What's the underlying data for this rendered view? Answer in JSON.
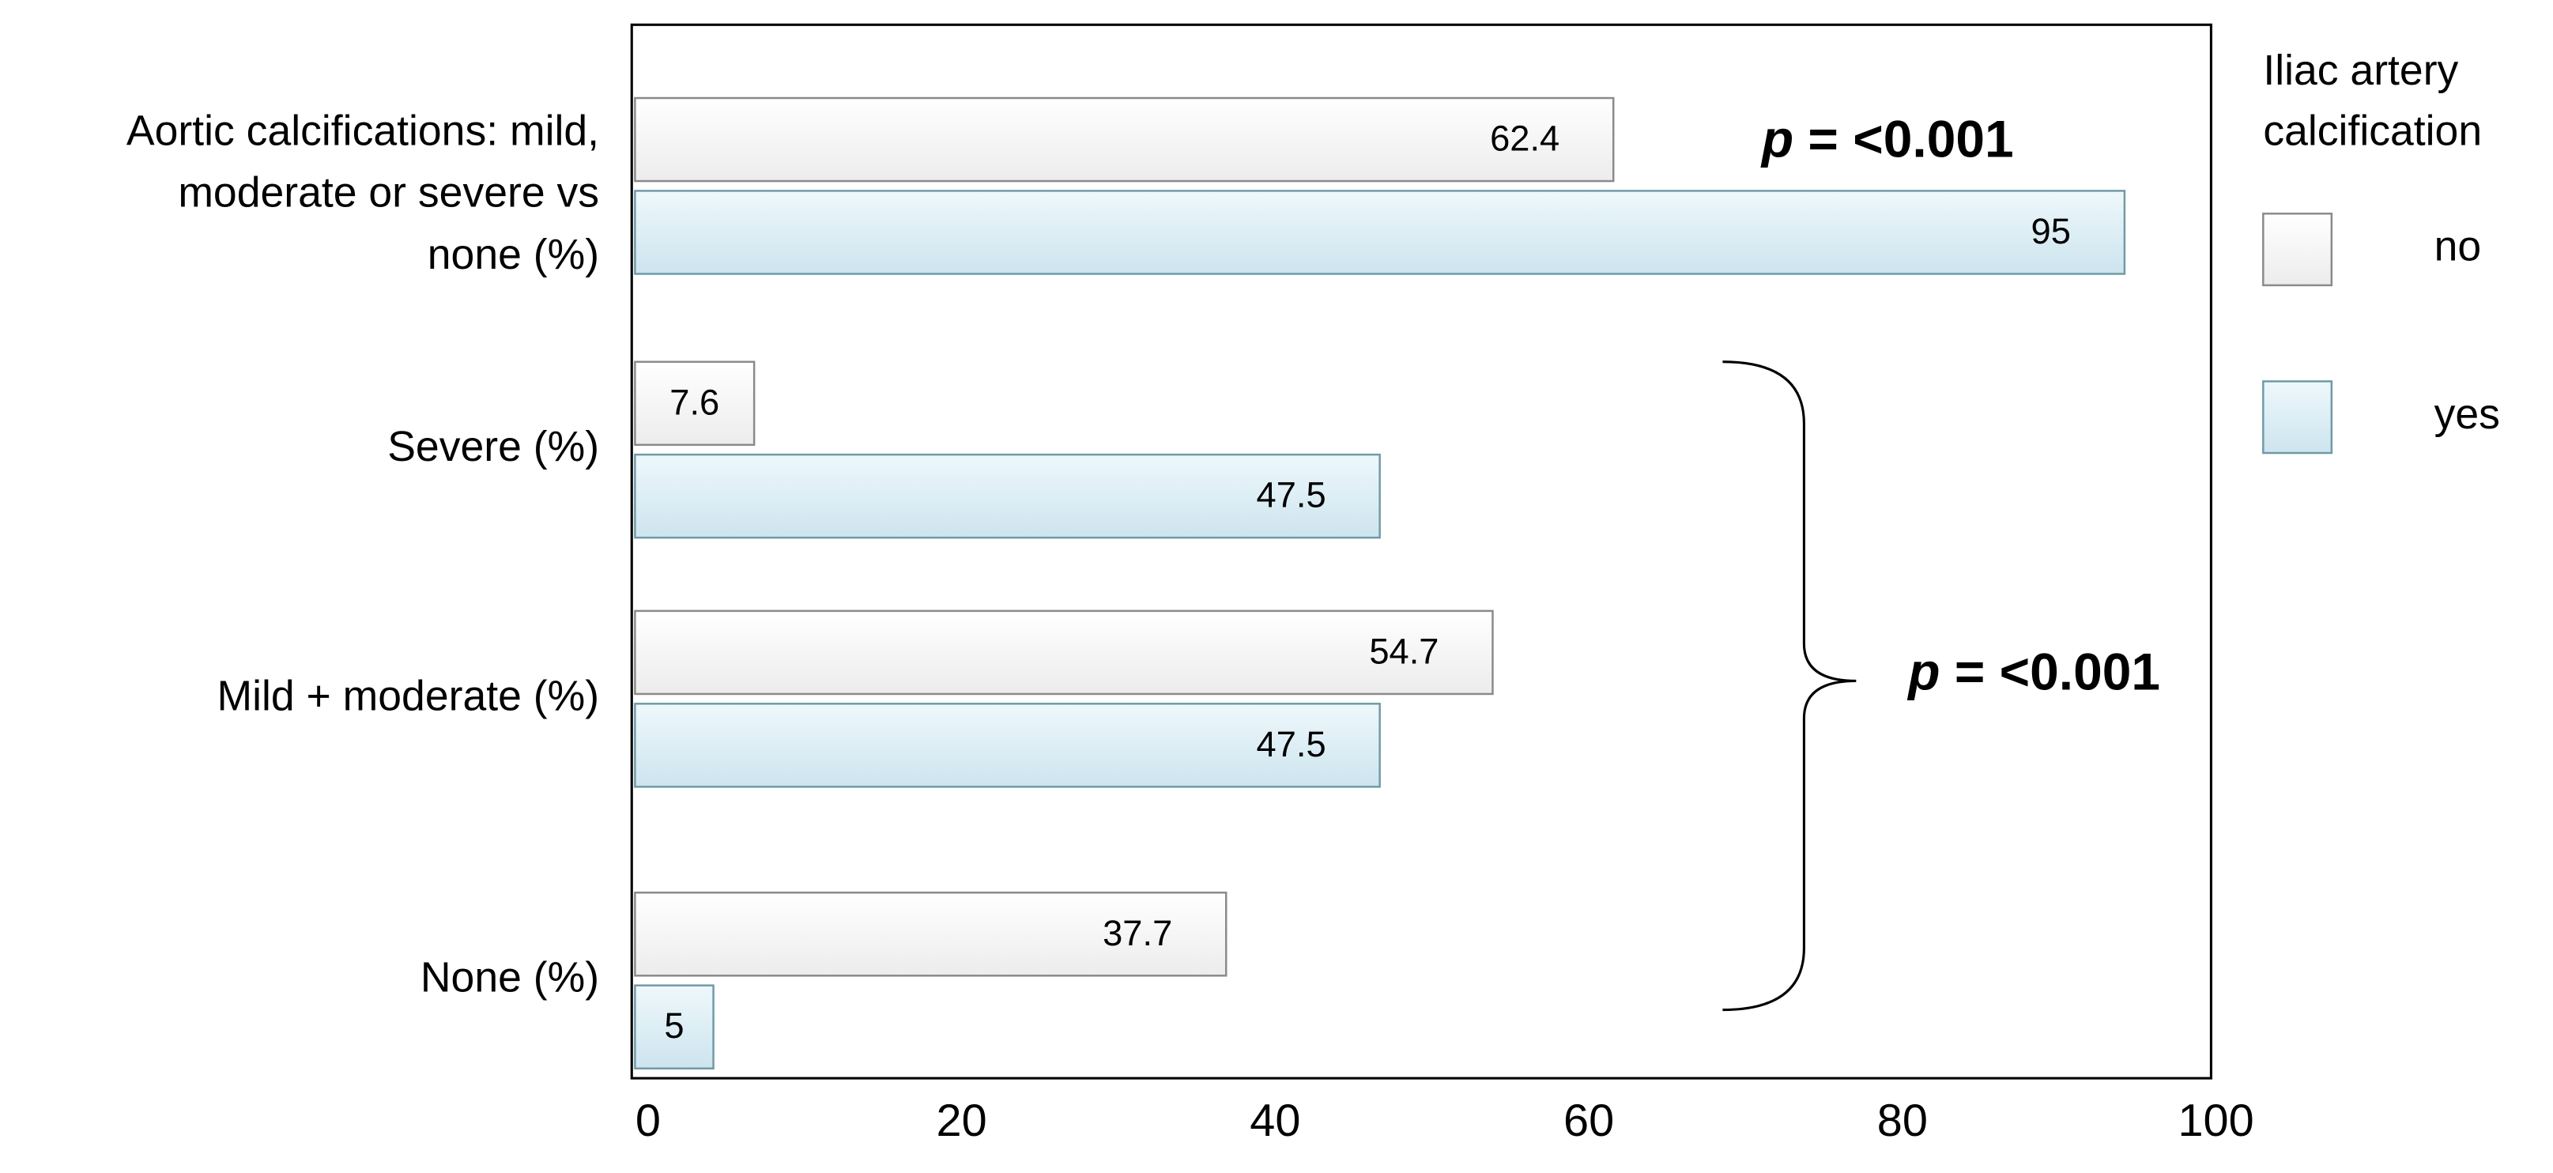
{
  "chart_data": {
    "type": "bar",
    "orientation": "horizontal",
    "categories": [
      [
        "Aortic calcifications: mild,",
        "moderate or severe vs",
        "none (%)"
      ],
      "Severe (%)",
      "Mild + moderate (%)",
      "None (%)"
    ],
    "series": [
      {
        "name": "no",
        "color": "#f7f7f7",
        "values": [
          62.4,
          7.6,
          54.7,
          37.7
        ]
      },
      {
        "name": "yes",
        "color": "#dcedf5",
        "values": [
          95,
          47.5,
          47.5,
          5
        ]
      }
    ],
    "legend_title": [
      "Iliac artery",
      "calcification"
    ],
    "legend": "right",
    "xlim": [
      0,
      100
    ],
    "xticks": [
      0,
      20,
      40,
      60,
      80,
      100
    ],
    "grid": false,
    "annotations": [
      "p = <0.001",
      "p = <0.001"
    ]
  }
}
